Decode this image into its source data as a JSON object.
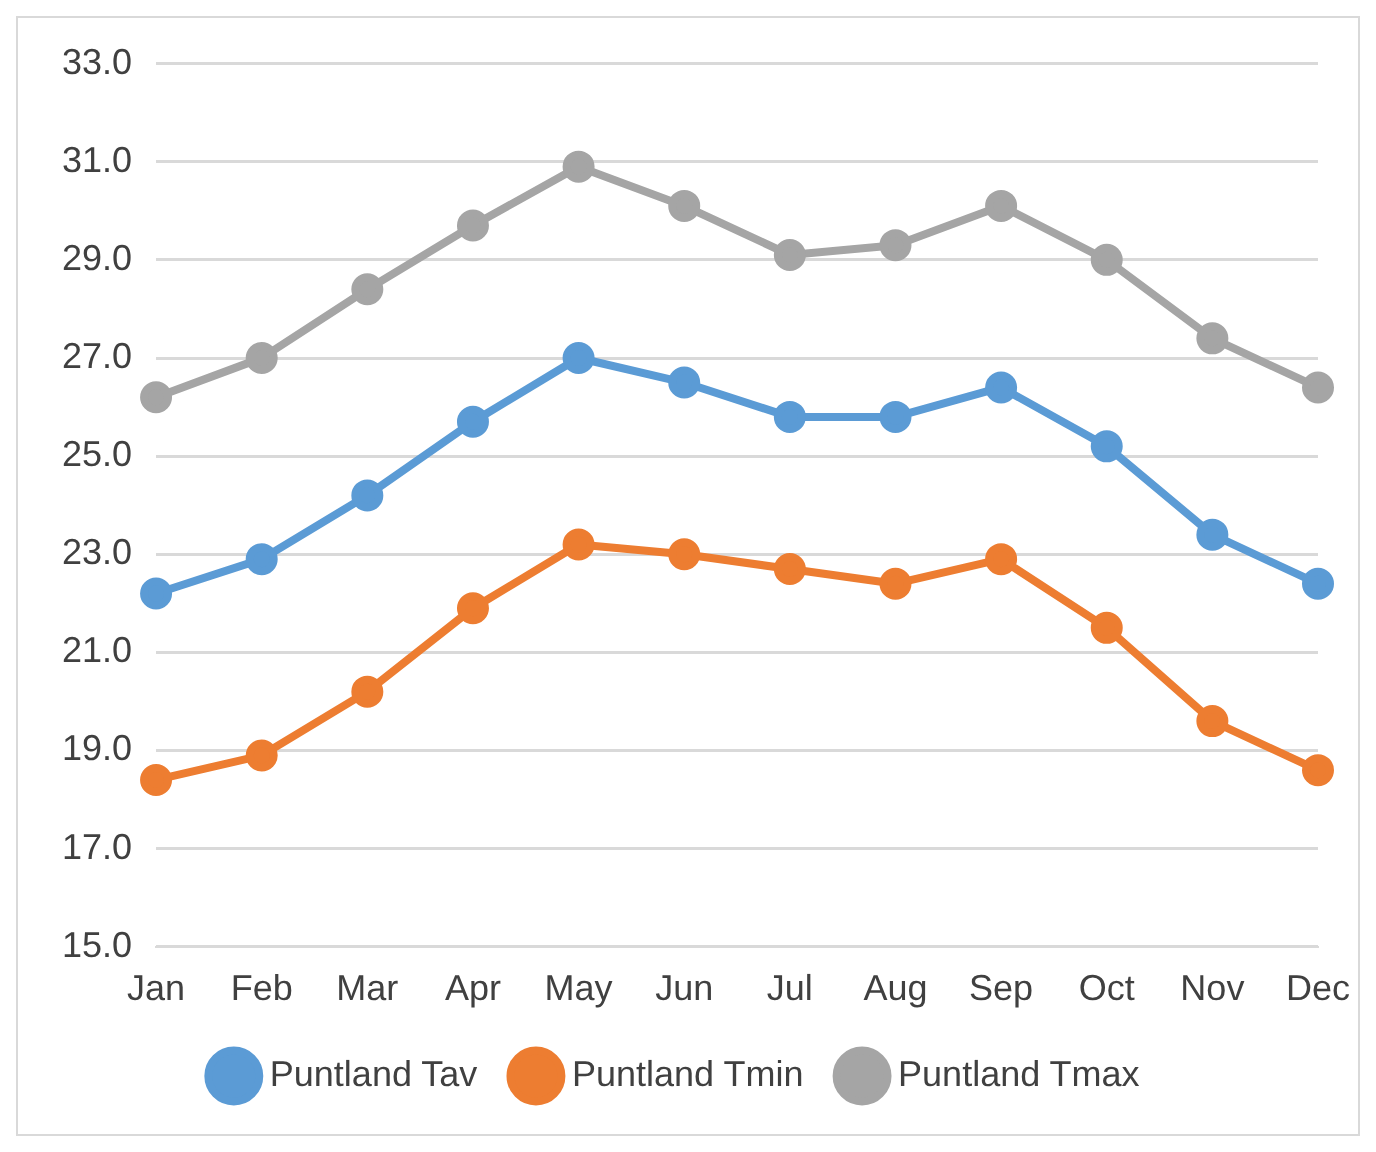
{
  "chart_data": {
    "type": "line",
    "categories": [
      "Jan",
      "Feb",
      "Mar",
      "Apr",
      "May",
      "Jun",
      "Jul",
      "Aug",
      "Sep",
      "Oct",
      "Nov",
      "Dec"
    ],
    "series": [
      {
        "name": "Puntland Tav",
        "color": "#5b9bd5",
        "values": [
          22.2,
          22.9,
          24.2,
          25.7,
          27.0,
          26.5,
          25.8,
          25.8,
          26.4,
          25.2,
          23.4,
          22.4
        ]
      },
      {
        "name": "Puntland Tmin",
        "color": "#ed7d31",
        "values": [
          18.4,
          18.9,
          20.2,
          21.9,
          23.2,
          23.0,
          22.7,
          22.4,
          22.9,
          21.5,
          19.6,
          18.6
        ]
      },
      {
        "name": "Puntland Tmax",
        "color": "#a5a5a5",
        "values": [
          26.2,
          27.0,
          28.4,
          29.7,
          30.9,
          30.1,
          29.1,
          29.3,
          30.1,
          29.0,
          27.4,
          26.4
        ]
      }
    ],
    "ylim": [
      15,
      33
    ],
    "yticks": [
      {
        "value": 15,
        "label": "15.0"
      },
      {
        "value": 17,
        "label": "17.0"
      },
      {
        "value": 19,
        "label": "19.0"
      },
      {
        "value": 21,
        "label": "21.0"
      },
      {
        "value": 23,
        "label": "23.0"
      },
      {
        "value": 25,
        "label": "25.0"
      },
      {
        "value": 27,
        "label": "27.0"
      },
      {
        "value": 29,
        "label": "29.0"
      },
      {
        "value": 31,
        "label": "31.0"
      },
      {
        "value": 33,
        "label": "33.0"
      }
    ],
    "grid": "y",
    "legend": "bottom",
    "marker": "circle",
    "line_style": "solid"
  }
}
